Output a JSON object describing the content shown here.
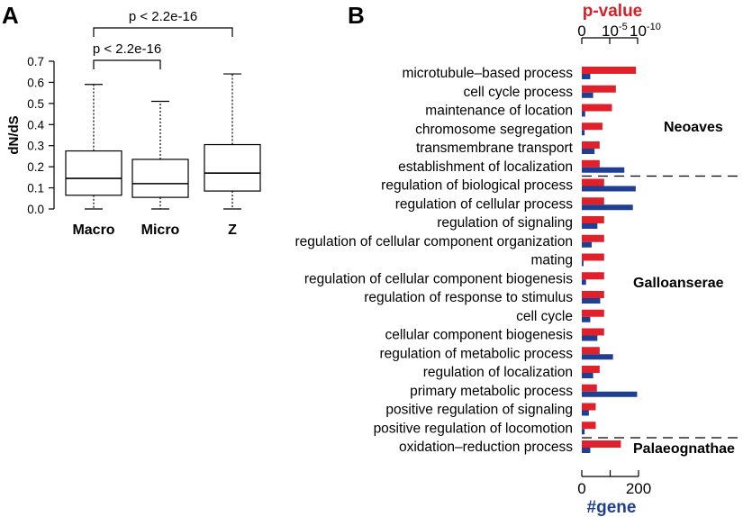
{
  "panels": {
    "a": {
      "letter": "A"
    },
    "b": {
      "letter": "B"
    }
  },
  "chart_data": [
    {
      "type": "boxplot",
      "ylabel": "dN/dS",
      "ylim": [
        0,
        0.7
      ],
      "yticks": [
        "0.0",
        "0.1",
        "0.2",
        "0.3",
        "0.4",
        "0.5",
        "0.6",
        "0.7"
      ],
      "categories": [
        "Macro",
        "Micro",
        "Z"
      ],
      "boxes": [
        {
          "whisker_low": 0.0,
          "q1": 0.065,
          "median": 0.145,
          "q3": 0.275,
          "whisker_high": 0.59
        },
        {
          "whisker_low": 0.0,
          "q1": 0.055,
          "median": 0.12,
          "q3": 0.235,
          "whisker_high": 0.51
        },
        {
          "whisker_low": 0.0,
          "q1": 0.085,
          "median": 0.17,
          "q3": 0.305,
          "whisker_high": 0.64
        }
      ],
      "annotations": [
        {
          "text": "p < 2.2e-16",
          "from": "Macro",
          "to": "Micro"
        },
        {
          "text": "p < 2.2e-16",
          "from": "Macro",
          "to": "Z"
        }
      ],
      "colors": {
        "box": "#000000"
      }
    },
    {
      "type": "bar",
      "orientation": "horizontal",
      "top_axis_label": "p-value",
      "top_axis_ticks": [
        {
          "base": "0",
          "exp": "",
          "value": 0
        },
        {
          "base": "10",
          "exp": "-5",
          "value": 5
        },
        {
          "base": "10",
          "exp": "-10",
          "value": 10
        }
      ],
      "bottom_axis_label": "#gene",
      "bottom_axis_ticks": [
        {
          "label": "0",
          "value": 0
        },
        {
          "label": "",
          "value": 100
        },
        {
          "label": "200",
          "value": 200
        }
      ],
      "pvalue_scale_max": 10,
      "gene_scale_max": 200,
      "categories": [
        "microtubule–based process",
        "cell cycle process",
        "maintenance of location",
        "chromosome segregation",
        "transmembrane transport",
        "establishment of localization",
        "regulation of biological process",
        "regulation of cellular process",
        "regulation of signaling",
        "regulation of cellular component organization",
        "mating",
        "regulation of cellular component biogenesis",
        "regulation of response to stimulus",
        "cell cycle",
        "cellular component biogenesis",
        "regulation of metabolic process",
        "regulation of localization",
        "primary metabolic process",
        "positive regulation of signaling",
        "positive regulation of locomotion",
        "oxidation–reduction process"
      ],
      "series": [
        {
          "name": "p-value",
          "color": "#e0202a",
          "values": [
            9.7,
            6.1,
            5.4,
            3.7,
            3.2,
            3.2,
            4.0,
            4.0,
            4.0,
            4.0,
            4.0,
            4.0,
            4.0,
            4.0,
            4.0,
            3.2,
            3.2,
            2.7,
            2.5,
            2.5,
            7.0
          ]
        },
        {
          "name": "#gene",
          "color": "#1f3f93",
          "values": [
            30,
            40,
            12,
            10,
            45,
            150,
            190,
            180,
            55,
            35,
            6,
            15,
            65,
            30,
            55,
            110,
            40,
            195,
            25,
            10,
            30
          ]
        }
      ],
      "groups": [
        {
          "label": "Neoaves",
          "from": 0,
          "to": 5
        },
        {
          "label": "Galloanserae",
          "from": 6,
          "to": 19
        },
        {
          "label": "Palaeognathae",
          "from": 20,
          "to": 20
        }
      ]
    }
  ]
}
